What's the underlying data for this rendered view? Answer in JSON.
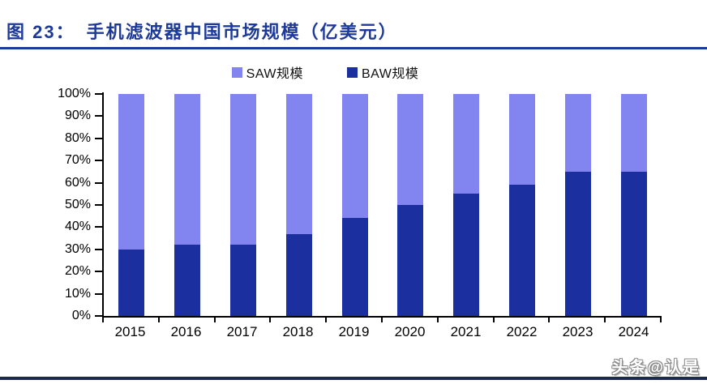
{
  "header": {
    "title_prefix": "图 23：",
    "title_text": "手机滤波器中国市场规模（亿美元）"
  },
  "colors": {
    "title": "#1E3A99",
    "saw": "#8284F0",
    "baw": "#1C2F9E",
    "axis": "#000000",
    "footer_rule": "#1A2A52",
    "watermark_fill": "#FFFFFF",
    "watermark_outline": "#8A8A8A"
  },
  "legend": {
    "items": [
      {
        "label": "SAW规模",
        "color_key": "saw"
      },
      {
        "label": "BAW规模",
        "color_key": "baw"
      }
    ]
  },
  "chart_data": {
    "type": "bar",
    "variant": "stacked-100-percent",
    "title": "手机滤波器中国市场规模（亿美元）",
    "categories": [
      "2015",
      "2016",
      "2017",
      "2018",
      "2019",
      "2020",
      "2021",
      "2022",
      "2023",
      "2024"
    ],
    "series": [
      {
        "name": "SAW规模",
        "color_key": "saw",
        "values": [
          70,
          68,
          68,
          63,
          56,
          50,
          45,
          41,
          35,
          35
        ]
      },
      {
        "name": "BAW规模",
        "color_key": "baw",
        "values": [
          30,
          32,
          32,
          37,
          44,
          50,
          55,
          59,
          65,
          65
        ]
      }
    ],
    "y_axis": {
      "min": 0,
      "max": 100,
      "step": 10,
      "unit": "%",
      "tick_labels": [
        "0%",
        "10%",
        "20%",
        "30%",
        "40%",
        "50%",
        "60%",
        "70%",
        "80%",
        "90%",
        "100%"
      ]
    },
    "x_axis_label": "",
    "y_axis_label": "",
    "legend_position": "top",
    "grid": false
  },
  "watermark": {
    "text": "头条@认是"
  }
}
